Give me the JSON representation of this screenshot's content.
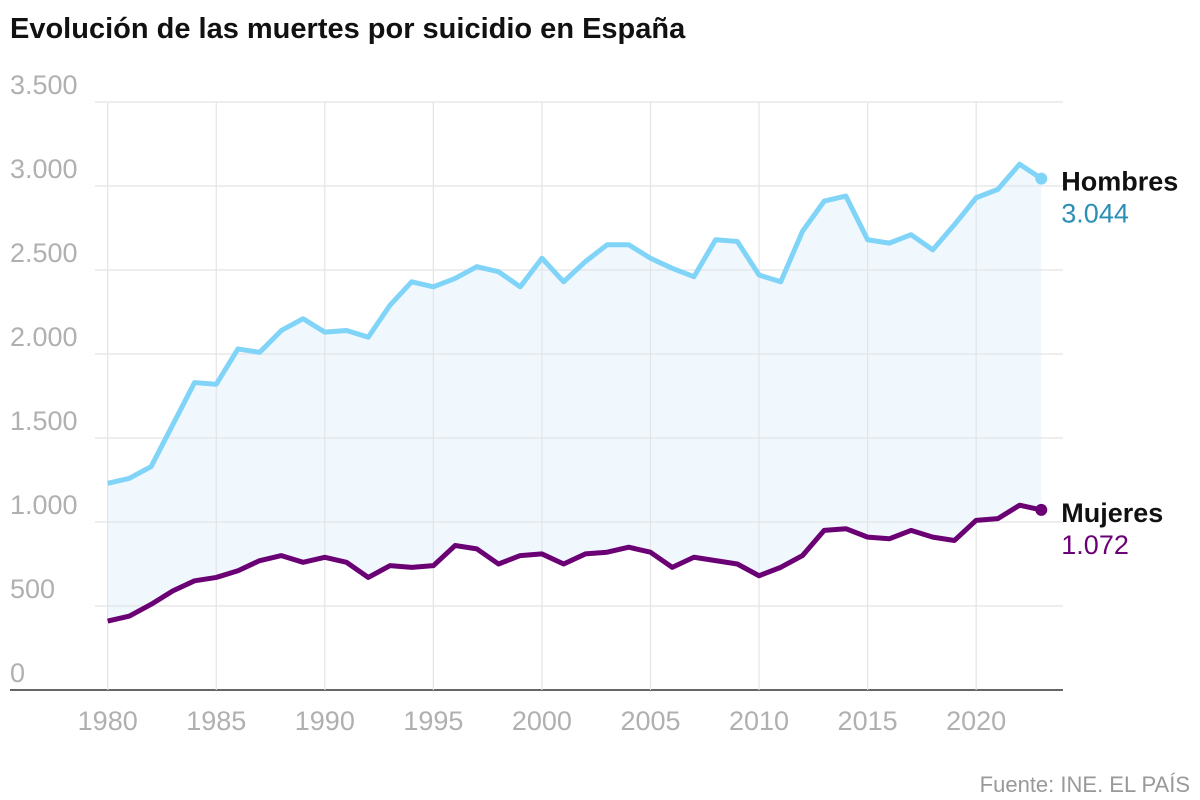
{
  "chart_data": {
    "type": "line",
    "title": "Evolución de las muertes por suicidio en España",
    "source": "Fuente: INE. EL PAÍS",
    "x": [
      1980,
      1981,
      1982,
      1983,
      1984,
      1985,
      1986,
      1987,
      1988,
      1989,
      1990,
      1991,
      1992,
      1993,
      1994,
      1995,
      1996,
      1997,
      1998,
      1999,
      2000,
      2001,
      2002,
      2003,
      2004,
      2005,
      2006,
      2007,
      2008,
      2009,
      2010,
      2011,
      2012,
      2013,
      2014,
      2015,
      2016,
      2017,
      2018,
      2019,
      2020,
      2021,
      2022,
      2023
    ],
    "series": [
      {
        "name": "Hombres",
        "color": "#80d4f8",
        "label_color": "#2a8fb5",
        "values": [
          1230,
          1260,
          1330,
          1580,
          1830,
          1820,
          2030,
          2010,
          2140,
          2210,
          2130,
          2140,
          2100,
          2290,
          2430,
          2400,
          2450,
          2520,
          2490,
          2400,
          2570,
          2430,
          2550,
          2650,
          2650,
          2570,
          2510,
          2460,
          2680,
          2670,
          2470,
          2430,
          2730,
          2910,
          2940,
          2680,
          2660,
          2710,
          2620,
          2770,
          2930,
          2980,
          3130,
          3044
        ],
        "value_labels": [
          null,
          null,
          null,
          null,
          null,
          null,
          null,
          null,
          null,
          null,
          null,
          null,
          null,
          null,
          null,
          null,
          null,
          null,
          null,
          null,
          null,
          null,
          null,
          null,
          null,
          null,
          null,
          null,
          null,
          null,
          null,
          null,
          null,
          null,
          null,
          null,
          null,
          null,
          null,
          null,
          null,
          null,
          null,
          "3.044"
        ]
      },
      {
        "name": "Mujeres",
        "color": "#6b0075",
        "label_color": "#6b0075",
        "values": [
          410,
          440,
          510,
          590,
          650,
          670,
          710,
          770,
          800,
          760,
          790,
          760,
          670,
          740,
          730,
          740,
          860,
          840,
          750,
          800,
          810,
          750,
          810,
          820,
          850,
          820,
          730,
          790,
          770,
          750,
          680,
          730,
          800,
          950,
          960,
          910,
          900,
          950,
          910,
          890,
          1010,
          1020,
          1100,
          1072
        ],
        "value_labels": [
          null,
          null,
          null,
          null,
          null,
          null,
          null,
          null,
          null,
          null,
          null,
          null,
          null,
          null,
          null,
          null,
          null,
          null,
          null,
          null,
          null,
          null,
          null,
          null,
          null,
          null,
          null,
          null,
          null,
          null,
          null,
          null,
          null,
          null,
          null,
          null,
          null,
          null,
          null,
          null,
          null,
          null,
          null,
          "1.072"
        ]
      }
    ],
    "area_color": "#f0f8fe",
    "xlim": [
      1975.5,
      2024
    ],
    "xticks": [
      1980,
      1985,
      1990,
      1995,
      2000,
      2005,
      2010,
      2015,
      2020
    ],
    "ylim": [
      0,
      3500
    ],
    "yticks": [
      0,
      500,
      {
        "value": 1000,
        "label": "1.000"
      },
      {
        "value": 1500,
        "label": "1.500"
      },
      {
        "value": 2000,
        "label": "2.000"
      },
      {
        "value": 2500,
        "label": "2.500"
      },
      {
        "value": 3000,
        "label": "3.000"
      },
      {
        "value": 3500,
        "label": "3.500"
      }
    ],
    "grid": true
  }
}
